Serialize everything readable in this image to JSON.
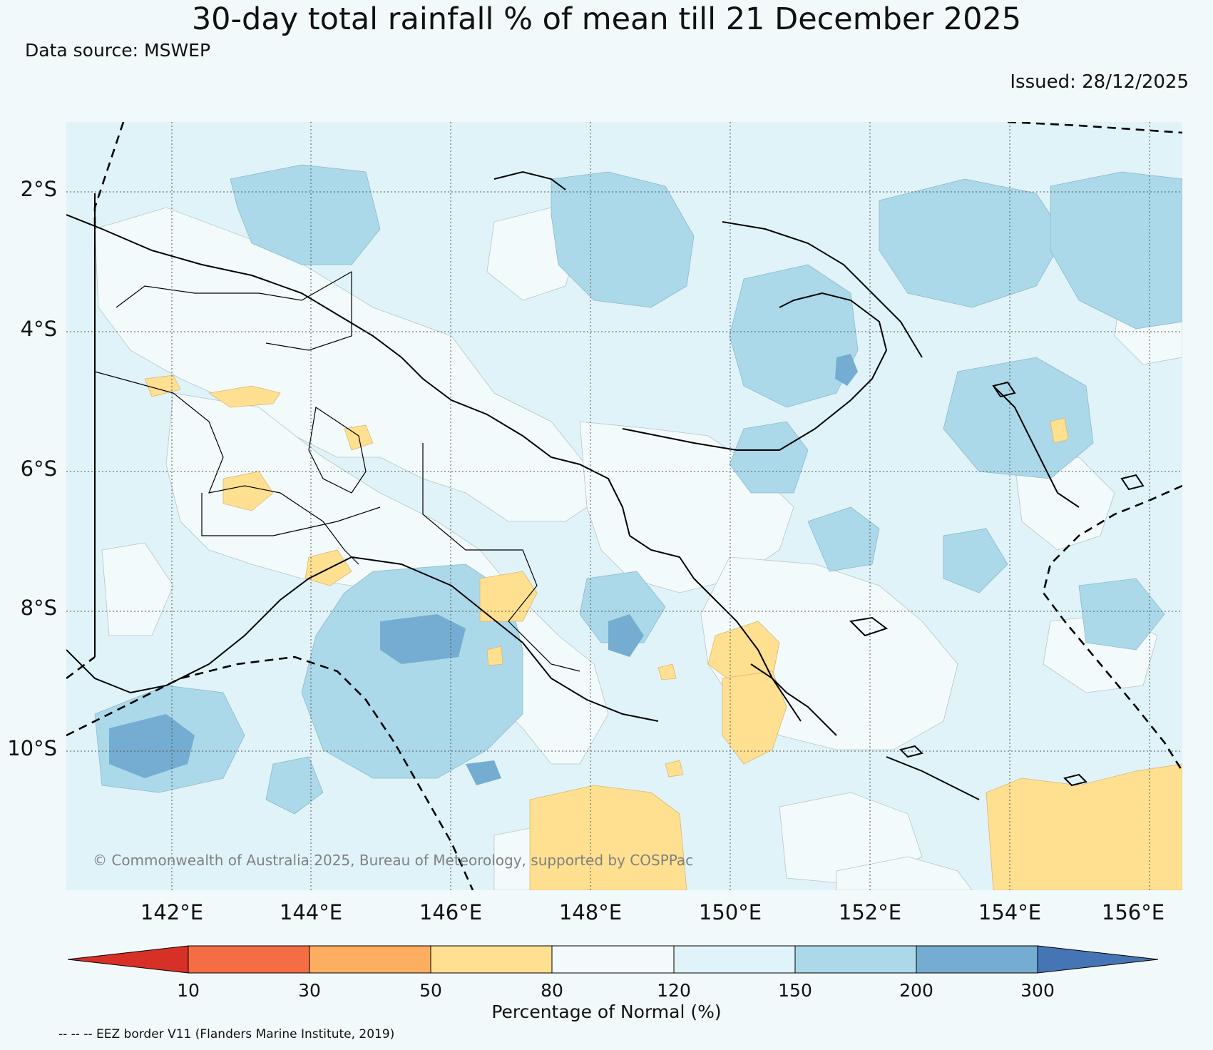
{
  "map": {
    "title": "30-day total rainfall % of mean till 21 December 2025",
    "data_source": "Data source: MSWEP",
    "issued": "Issued: 28/12/2025",
    "copyright": "© Commonwealth of Australia 2025, Bureau of Meteorology, supported by COSPPac",
    "eez_note": "-- -- -- EEZ border V11 (Flanders Marine Institute, 2019)",
    "lat_labels": [
      "2°S",
      "4°S",
      "6°S",
      "8°S",
      "10°S"
    ],
    "lon_labels": [
      "142°E",
      "144°E",
      "146°E",
      "148°E",
      "150°E",
      "152°E",
      "154°E",
      "156°E"
    ],
    "background_color": "#f2f9fb"
  },
  "colorbar": {
    "title": "Percentage of Normal (%)",
    "tick_labels": [
      "10",
      "30",
      "50",
      "80",
      "120",
      "150",
      "200",
      "300"
    ],
    "colors": [
      "#d73027",
      "#f46d43",
      "#fdae61",
      "#fee090",
      "#f3fafc",
      "#e0f3f8",
      "#abd9e9",
      "#74add1",
      "#4575b4"
    ]
  }
}
